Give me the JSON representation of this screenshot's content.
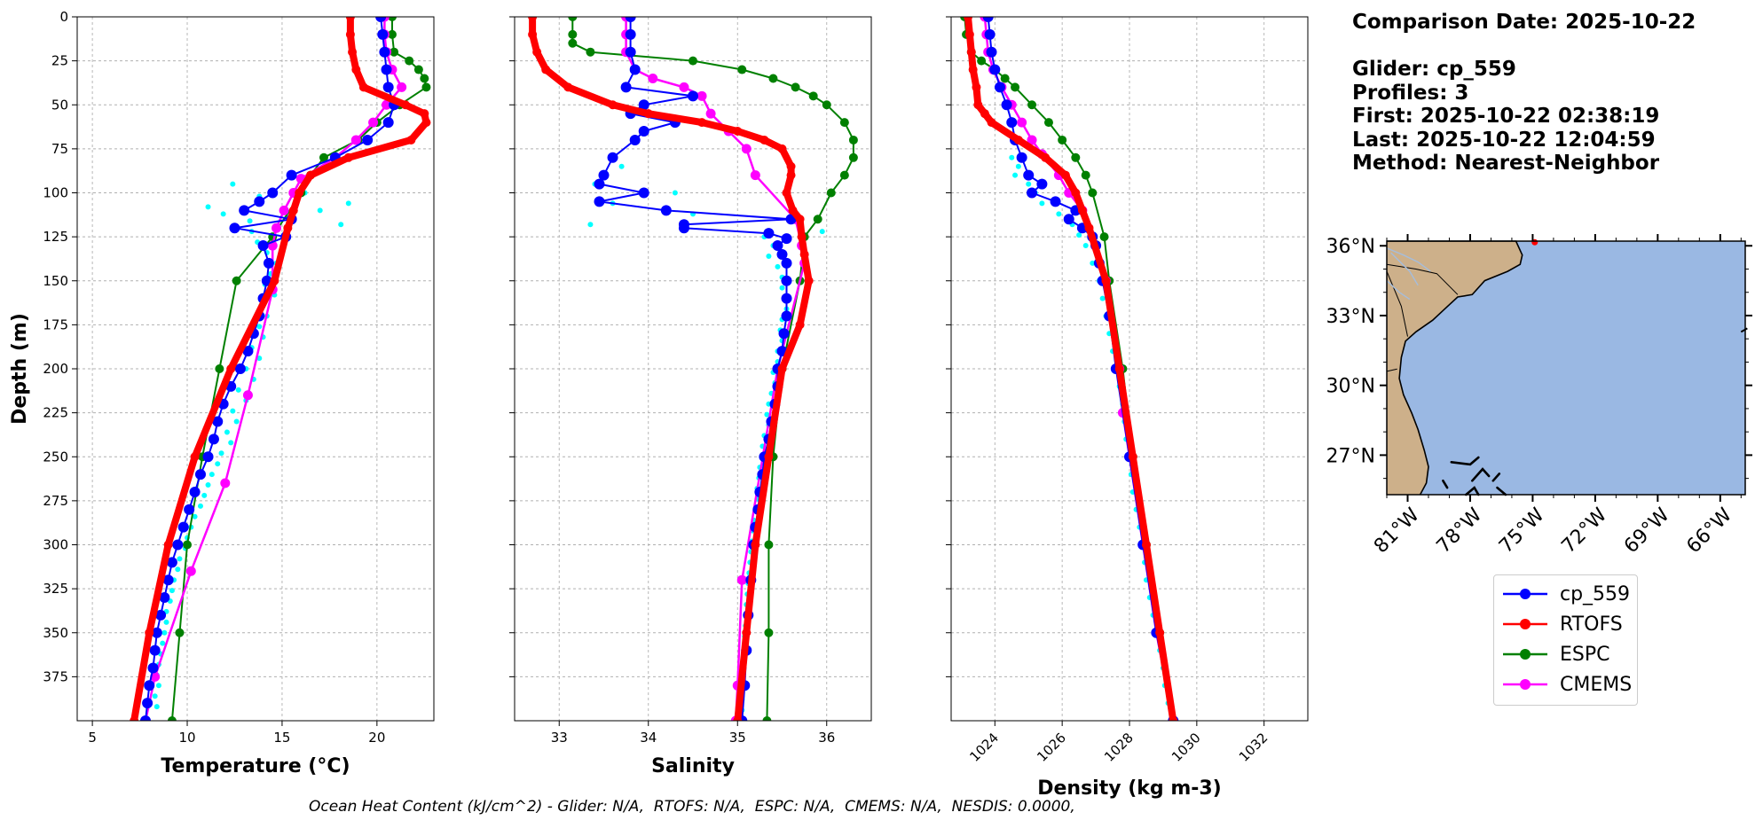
{
  "info": {
    "comparison_date": "Comparison Date: 2025-10-22",
    "glider": "Glider: cp_559",
    "profiles": "Profiles: 3",
    "first": "First: 2025-10-22 02:38:19",
    "last": "Last: 2025-10-22 12:04:59",
    "method": "Method: Nearest-Neighbor"
  },
  "footer": "Ocean Heat Content (kJ/cm^2) - Glider: N/A,  RTOFS: N/A,  ESPC: N/A,  CMEMS: N/A,  NESDIS: 0.0000,",
  "colors": {
    "glider": "#0000ff",
    "rtofs": "#ff0000",
    "espc": "#008000",
    "cmems": "#ff00ff",
    "raw": "#00ffff",
    "land": "#cdb08a",
    "ocean": "#9ab8e3",
    "grid": "#b0b0b0"
  },
  "legend": [
    {
      "name": "cp_559",
      "color": "#0000ff"
    },
    {
      "name": "RTOFS",
      "color": "#ff0000"
    },
    {
      "name": "ESPC",
      "color": "#008000"
    },
    {
      "name": "CMEMS",
      "color": "#ff00ff"
    }
  ],
  "chart_data": [
    {
      "type": "line",
      "xlabel": "Temperature ($^{o}C$)",
      "xlabel_text": "Temperature (°C)",
      "ylabel": "Depth (m)",
      "xlim": [
        4.2,
        23
      ],
      "ylim": [
        400,
        0
      ],
      "xticks": [
        5,
        10,
        15,
        20
      ],
      "yticks": [
        0,
        25,
        50,
        75,
        100,
        125,
        150,
        175,
        200,
        225,
        250,
        275,
        300,
        325,
        350,
        375
      ],
      "grid": true,
      "series": [
        {
          "name": "cp_559",
          "depth": [
            0,
            10,
            20,
            30,
            40,
            50,
            60,
            70,
            80,
            90,
            100,
            105,
            110,
            115,
            120,
            125,
            130,
            140,
            150,
            160,
            170,
            180,
            190,
            200,
            210,
            220,
            230,
            240,
            250,
            260,
            270,
            280,
            290,
            300,
            310,
            320,
            330,
            340,
            350,
            360,
            370,
            380,
            390,
            400
          ],
          "values": [
            20.2,
            20.3,
            20.4,
            20.5,
            20.6,
            20.9,
            20.6,
            19.5,
            17.8,
            15.5,
            14.5,
            13.8,
            13,
            15.5,
            12.5,
            15.2,
            14,
            14.3,
            14.2,
            14,
            13.8,
            13.5,
            13.2,
            12.8,
            12.3,
            11.9,
            11.6,
            11.4,
            11.1,
            10.7,
            10.4,
            10.1,
            9.8,
            9.5,
            9.2,
            9,
            8.8,
            8.6,
            8.4,
            8.3,
            8.2,
            8,
            7.9,
            7.8
          ]
        },
        {
          "name": "RTOFS",
          "depth": [
            0,
            10,
            20,
            30,
            40,
            50,
            55,
            60,
            70,
            80,
            90,
            100,
            110,
            120,
            150,
            200,
            250,
            300,
            350,
            400
          ],
          "values": [
            18.6,
            18.6,
            18.7,
            18.9,
            19.3,
            21.5,
            22.5,
            22.6,
            21.8,
            18.5,
            16.5,
            15.9,
            15.6,
            15.3,
            14.6,
            12.3,
            10.4,
            9,
            8,
            7.2
          ]
        },
        {
          "name": "ESPC",
          "depth": [
            0,
            10,
            20,
            25,
            30,
            35,
            40,
            50,
            60,
            70,
            80,
            90,
            100,
            125,
            150,
            200,
            250,
            300,
            350,
            400
          ],
          "values": [
            20.8,
            20.8,
            20.9,
            21.7,
            22.2,
            22.5,
            22.6,
            21.2,
            20,
            19,
            17.2,
            16.5,
            16,
            14.5,
            12.6,
            11.7,
            10.8,
            10,
            9.6,
            9.2
          ]
        },
        {
          "name": "CMEMS",
          "depth": [
            0,
            10,
            20,
            30,
            40,
            50,
            60,
            70,
            80,
            92,
            100,
            110,
            120,
            130,
            155,
            215,
            265,
            315,
            375,
            400
          ],
          "values": [
            20.4,
            20.4,
            20.5,
            20.8,
            21.3,
            20.5,
            19.8,
            18.9,
            17.8,
            16,
            15.6,
            15.1,
            14.7,
            14.5,
            14.5,
            13.2,
            12,
            10.2,
            8.3,
            7.8
          ]
        }
      ],
      "raw_points": {
        "name": "raw",
        "depth": [
          95,
          100,
          102,
          106,
          108,
          110,
          112,
          116,
          118,
          120,
          122,
          128,
          134,
          140,
          146,
          152,
          158,
          164,
          170,
          176,
          182,
          188,
          194,
          200,
          206,
          212,
          218,
          224,
          230,
          236,
          242,
          248,
          254,
          260,
          266,
          272,
          278,
          284,
          290,
          296,
          302,
          308,
          314,
          320,
          326,
          332,
          338,
          344,
          350,
          356,
          362,
          368,
          374,
          380,
          386,
          392
        ],
        "values": [
          12.4,
          16.2,
          13.8,
          18.5,
          11.1,
          17,
          11.9,
          13.3,
          18.1,
          14.8,
          13.4,
          13.7,
          14.2,
          14.7,
          14.4,
          14.1,
          14.6,
          13.9,
          14.2,
          13.8,
          14,
          13.4,
          13.8,
          13.1,
          13.5,
          12.7,
          13.1,
          12.4,
          12.6,
          12.1,
          12.3,
          11.8,
          11.6,
          11.3,
          11.1,
          10.9,
          10.7,
          10.4,
          10.2,
          10,
          9.9,
          9.6,
          9.5,
          9.3,
          9.2,
          9.1,
          8.9,
          8.9,
          8.8,
          8.7,
          8.6,
          8.5,
          8.4,
          8.5,
          8.3,
          8.4
        ]
      }
    },
    {
      "type": "line",
      "xlabel": "Salinity",
      "xlim": [
        32.5,
        36.5
      ],
      "ylim": [
        400,
        0
      ],
      "xticks": [
        33,
        34,
        35,
        36
      ],
      "grid": true,
      "series": [
        {
          "name": "cp_559",
          "depth": [
            0,
            10,
            20,
            30,
            40,
            45,
            50,
            55,
            60,
            65,
            70,
            80,
            90,
            95,
            100,
            105,
            110,
            115,
            118,
            120,
            123,
            126,
            130,
            135,
            140,
            150,
            160,
            170,
            180,
            190,
            200,
            210,
            220,
            230,
            240,
            250,
            260,
            270,
            280,
            290,
            300,
            320,
            340,
            360,
            380,
            400
          ],
          "values": [
            33.8,
            33.8,
            33.8,
            33.85,
            33.75,
            34.5,
            33.95,
            33.8,
            34.3,
            33.95,
            33.85,
            33.6,
            33.5,
            33.45,
            33.95,
            33.45,
            34.2,
            35.6,
            34.4,
            34.4,
            35.35,
            35.55,
            35.45,
            35.5,
            35.55,
            35.55,
            35.55,
            35.55,
            35.52,
            35.5,
            35.45,
            35.45,
            35.42,
            35.38,
            35.35,
            35.3,
            35.28,
            35.25,
            35.23,
            35.2,
            35.18,
            35.15,
            35.12,
            35.1,
            35.08,
            35.05
          ]
        },
        {
          "name": "RTOFS",
          "depth": [
            0,
            10,
            20,
            30,
            40,
            50,
            55,
            60,
            65,
            70,
            75,
            85,
            90,
            100,
            110,
            115,
            125,
            135,
            150,
            175,
            200,
            250,
            300,
            350,
            400
          ],
          "values": [
            32.7,
            32.7,
            32.75,
            32.85,
            33.1,
            33.6,
            34.0,
            34.6,
            35.0,
            35.3,
            35.5,
            35.6,
            35.6,
            35.55,
            35.62,
            35.7,
            35.72,
            35.75,
            35.8,
            35.7,
            35.5,
            35.35,
            35.2,
            35.1,
            35.0
          ]
        },
        {
          "name": "ESPC",
          "depth": [
            0,
            10,
            15,
            20,
            25,
            30,
            35,
            40,
            45,
            50,
            60,
            70,
            80,
            90,
            100,
            115,
            125,
            150,
            200,
            250,
            300,
            350,
            400
          ],
          "values": [
            33.15,
            33.15,
            33.15,
            33.35,
            34.5,
            35.05,
            35.4,
            35.65,
            35.85,
            36,
            36.2,
            36.3,
            36.3,
            36.2,
            36.05,
            35.9,
            35.75,
            35.7,
            35.5,
            35.4,
            35.35,
            35.35,
            35.33
          ]
        },
        {
          "name": "CMEMS",
          "depth": [
            0,
            10,
            20,
            30,
            35,
            40,
            45,
            55,
            65,
            75,
            90,
            115,
            130,
            140,
            200,
            320,
            380,
            400
          ],
          "values": [
            33.75,
            33.75,
            33.75,
            33.85,
            34.05,
            34.4,
            34.6,
            34.7,
            34.9,
            35.1,
            35.2,
            35.65,
            35.72,
            35.75,
            35.45,
            35.05,
            35.0,
            34.98
          ]
        }
      ],
      "raw_points": {
        "name": "raw",
        "depth": [
          80,
          85,
          90,
          95,
          100,
          106,
          112,
          118,
          122,
          125,
          130,
          136,
          142,
          148,
          154,
          160,
          166,
          172,
          178,
          184,
          190,
          196,
          202,
          208,
          214,
          220,
          226,
          232,
          238,
          244,
          250,
          256,
          262,
          268,
          274,
          280,
          286,
          292,
          298,
          304,
          310,
          316,
          322,
          328,
          334,
          340,
          346,
          352,
          358,
          364,
          370,
          376,
          382,
          388,
          394
        ],
        "values": [
          33.6,
          33.7,
          33.5,
          33.4,
          34.3,
          33.6,
          34.5,
          33.35,
          35.95,
          35.3,
          35.4,
          35.35,
          35.45,
          35.5,
          35.5,
          35.52,
          35.55,
          35.5,
          35.48,
          35.5,
          35.45,
          35.45,
          35.4,
          35.42,
          35.38,
          35.35,
          35.33,
          35.35,
          35.3,
          35.28,
          35.27,
          35.25,
          35.24,
          35.22,
          35.22,
          35.2,
          35.18,
          35.17,
          35.16,
          35.15,
          35.14,
          35.13,
          35.12,
          35.11,
          35.1,
          35.1,
          35.09,
          35.08,
          35.08,
          35.07,
          35.07,
          35.06,
          35.06,
          35.05,
          35.05
        ]
      }
    },
    {
      "type": "line",
      "xlabel": "Density (kg m-3)",
      "xlim": [
        1022.7,
        1033.3
      ],
      "ylim": [
        400,
        0
      ],
      "xticks": [
        1024,
        1026,
        1028,
        1030,
        1032
      ],
      "grid": true,
      "series": [
        {
          "name": "cp_559",
          "depth": [
            0,
            10,
            20,
            30,
            40,
            50,
            60,
            70,
            80,
            90,
            95,
            100,
            105,
            110,
            115,
            120,
            125,
            130,
            140,
            150,
            170,
            200,
            250,
            300,
            350,
            400
          ],
          "values": [
            1023.8,
            1023.85,
            1023.9,
            1024.0,
            1024.15,
            1024.35,
            1024.5,
            1024.6,
            1024.8,
            1025.0,
            1025.4,
            1025.1,
            1025.8,
            1026.4,
            1026.2,
            1026.6,
            1026.9,
            1027.0,
            1027.1,
            1027.2,
            1027.4,
            1027.6,
            1028.0,
            1028.4,
            1028.8,
            1029.3
          ]
        },
        {
          "name": "RTOFS",
          "depth": [
            0,
            10,
            20,
            30,
            40,
            50,
            55,
            60,
            70,
            80,
            90,
            100,
            110,
            120,
            150,
            200,
            250,
            300,
            350,
            400
          ],
          "values": [
            1023.2,
            1023.25,
            1023.3,
            1023.35,
            1023.45,
            1023.5,
            1023.7,
            1023.9,
            1024.7,
            1025.5,
            1026.1,
            1026.4,
            1026.6,
            1026.8,
            1027.3,
            1027.7,
            1028.1,
            1028.5,
            1028.9,
            1029.3
          ]
        },
        {
          "name": "ESPC",
          "depth": [
            0,
            10,
            20,
            25,
            30,
            35,
            40,
            50,
            60,
            70,
            80,
            90,
            100,
            125,
            150,
            200,
            250,
            300,
            350,
            400
          ],
          "values": [
            1023.1,
            1023.15,
            1023.3,
            1023.6,
            1024.0,
            1024.3,
            1024.6,
            1025.1,
            1025.6,
            1026.0,
            1026.4,
            1026.7,
            1026.9,
            1027.25,
            1027.4,
            1027.8,
            1028.1,
            1028.5,
            1028.9,
            1029.3
          ]
        },
        {
          "name": "CMEMS",
          "depth": [
            0,
            10,
            20,
            30,
            40,
            50,
            60,
            70,
            78,
            90,
            100,
            110,
            125,
            150,
            200,
            225,
            250,
            300,
            350,
            400
          ],
          "values": [
            1023.7,
            1023.75,
            1023.8,
            1023.95,
            1024.2,
            1024.5,
            1024.8,
            1025.1,
            1025.4,
            1025.9,
            1026.2,
            1026.6,
            1026.9,
            1027.3,
            1027.7,
            1027.8,
            1028.0,
            1028.4,
            1028.8,
            1029.3
          ]
        }
      ],
      "raw_points": {
        "name": "raw",
        "depth": [
          80,
          85,
          90,
          95,
          100,
          106,
          112,
          118,
          124,
          130,
          140,
          150,
          160,
          170,
          180,
          190,
          200,
          210,
          220,
          230,
          240,
          250,
          260,
          270,
          280,
          290,
          300,
          310,
          320,
          330,
          340,
          350,
          360,
          370,
          380,
          390
        ],
        "values": [
          1024.5,
          1024.7,
          1024.6,
          1025.0,
          1025.2,
          1025.4,
          1025.9,
          1026.3,
          1026.5,
          1026.7,
          1026.9,
          1027.1,
          1027.2,
          1027.3,
          1027.4,
          1027.5,
          1027.6,
          1027.7,
          1027.8,
          1027.85,
          1027.9,
          1028.0,
          1028.05,
          1028.1,
          1028.2,
          1028.3,
          1028.35,
          1028.45,
          1028.5,
          1028.6,
          1028.7,
          1028.8,
          1028.9,
          1029.0,
          1029.05,
          1029.15
        ]
      }
    }
  ],
  "map": {
    "lat_labels": [
      "36°N",
      "33°N",
      "30°N",
      "27°N"
    ],
    "lon_labels": [
      "81°W",
      "78°W",
      "75°W",
      "72°W",
      "69°W",
      "66°W"
    ],
    "lat_values": [
      36,
      33,
      30,
      27
    ],
    "lon_values": [
      -81,
      -78,
      -75,
      -72,
      -69,
      -66
    ],
    "lon_range": [
      -82,
      -64.8
    ],
    "lat_range": [
      25.3,
      36.2
    ]
  }
}
